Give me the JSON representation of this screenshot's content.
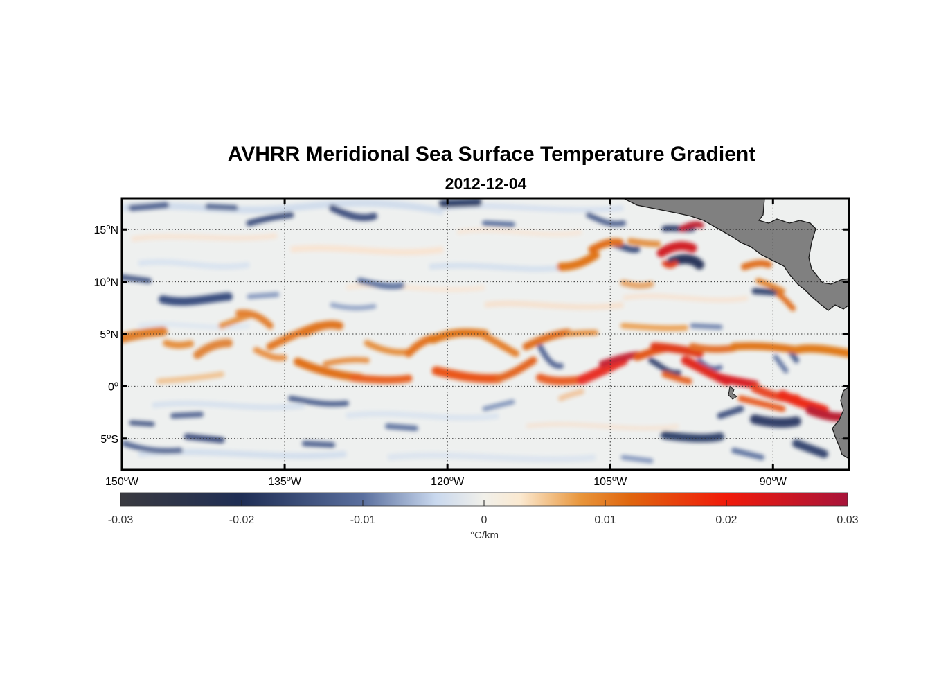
{
  "title": "AVHRR Meridional Sea Surface Temperature Gradient",
  "subtitle": "2012-12-04",
  "map": {
    "lon_range": [
      -150,
      -83
    ],
    "lat_range": [
      -8,
      18
    ],
    "lon_ticks": [
      {
        "value": -150,
        "num": "150",
        "hemi": "W"
      },
      {
        "value": -135,
        "num": "135",
        "hemi": "W"
      },
      {
        "value": -120,
        "num": "120",
        "hemi": "W"
      },
      {
        "value": -105,
        "num": "105",
        "hemi": "W"
      },
      {
        "value": -90,
        "num": "90",
        "hemi": "W"
      }
    ],
    "lat_ticks": [
      {
        "value": 15,
        "num": "15",
        "hemi": "N"
      },
      {
        "value": 10,
        "num": "10",
        "hemi": "N"
      },
      {
        "value": 5,
        "num": "5",
        "hemi": "N"
      },
      {
        "value": 0,
        "num": "0",
        "hemi": ""
      },
      {
        "value": -5,
        "num": "5",
        "hemi": "S"
      }
    ],
    "grid": "dotted",
    "land_color": "#808080"
  },
  "colorbar": {
    "min": -0.03,
    "max": 0.03,
    "ticks": [
      "-0.03",
      "-0.02",
      "-0.01",
      "0",
      "0.01",
      "0.02",
      "0.03"
    ],
    "units": "°C/km",
    "stops": [
      {
        "value": -0.03,
        "color": "#3a3a40"
      },
      {
        "value": -0.02,
        "color": "#1f2e55"
      },
      {
        "value": -0.01,
        "color": "#5a6f9e"
      },
      {
        "value": -0.004,
        "color": "#c9d8ee"
      },
      {
        "value": 0,
        "color": "#f1f0ea"
      },
      {
        "value": 0.003,
        "color": "#fbe9d0"
      },
      {
        "value": 0.008,
        "color": "#e8953a"
      },
      {
        "value": 0.012,
        "color": "#e0660e"
      },
      {
        "value": 0.02,
        "color": "#f01a0a"
      },
      {
        "value": 0.03,
        "color": "#a8143a"
      }
    ]
  }
}
